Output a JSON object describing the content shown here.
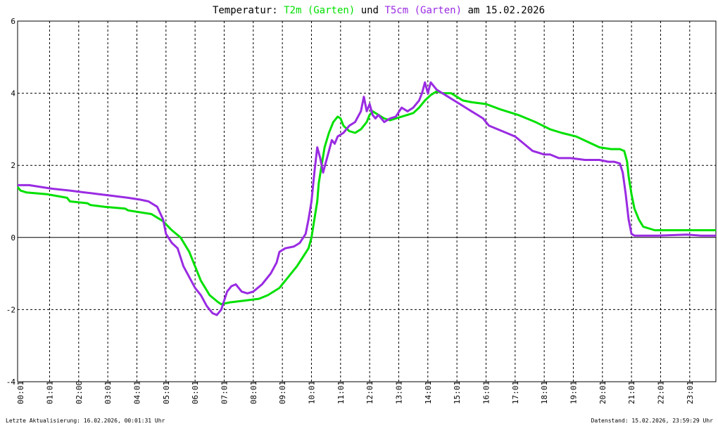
{
  "chart_data": {
    "type": "line",
    "title_parts": {
      "prefix": "Temperatur:",
      "series1": "T2m (Garten)",
      "connector": "und",
      "series2": "T5cm (Garten)",
      "suffix": "am 15.02.2026"
    },
    "ylim": [
      -4,
      6
    ],
    "yticks": [
      "-4",
      "-2",
      "0",
      "2",
      "4",
      "6"
    ],
    "xlim": [
      0,
      24
    ],
    "xtick_labels": [
      "00:01",
      "01:01",
      "02:00",
      "03:01",
      "04:01",
      "05:01",
      "06:01",
      "07:01",
      "08:01",
      "09:01",
      "10:01",
      "11:01",
      "12:01",
      "13:01",
      "14:01",
      "15:01",
      "16:01",
      "17:01",
      "18:01",
      "19:01",
      "20:01",
      "21:01",
      "22:01",
      "23:01"
    ],
    "grid": true,
    "colors": {
      "t2m": "#00e000",
      "t5cm": "#9a2be2",
      "frame": "#000000"
    },
    "series": [
      {
        "name": "T2m (Garten)",
        "color": "#00e000",
        "x": [
          0,
          0.1,
          0.3,
          1,
          1.7,
          1.8,
          2.4,
          2.5,
          3,
          3.7,
          3.8,
          4.6,
          5.0,
          5.3,
          5.6,
          5.9,
          6.1,
          6.3,
          6.6,
          6.9,
          7.0,
          7.3,
          7.8,
          8.3,
          8.6,
          9.0,
          9.3,
          9.6,
          9.8,
          10.0,
          10.1,
          10.2,
          10.3,
          10.35,
          10.45,
          10.55,
          10.7,
          10.85,
          11.0,
          11.1,
          11.2,
          11.4,
          11.6,
          11.8,
          12.0,
          12.1,
          12.2,
          12.4,
          12.6,
          12.8,
          13.0,
          13.2,
          13.4,
          13.6,
          13.8,
          14.0,
          14.2,
          14.4,
          14.6,
          14.9,
          15.1,
          15.3,
          15.6,
          16.1,
          16.6,
          17.2,
          17.8,
          18.3,
          18.7,
          19.2,
          19.6,
          20.0,
          20.4,
          20.7,
          20.85,
          20.95,
          21.0,
          21.1,
          21.2,
          21.35,
          21.5,
          21.7,
          21.9,
          22.2,
          23.0,
          24.0
        ],
        "values": [
          1.4,
          1.3,
          1.25,
          1.2,
          1.1,
          1.0,
          0.95,
          0.9,
          0.85,
          0.8,
          0.75,
          0.65,
          0.45,
          0.2,
          0.0,
          -0.4,
          -0.8,
          -1.2,
          -1.6,
          -1.8,
          -1.85,
          -1.8,
          -1.75,
          -1.7,
          -1.6,
          -1.4,
          -1.1,
          -0.8,
          -0.55,
          -0.3,
          0.0,
          0.5,
          1.0,
          1.5,
          2.0,
          2.5,
          2.9,
          3.2,
          3.35,
          3.3,
          3.1,
          2.95,
          2.9,
          3.0,
          3.2,
          3.4,
          3.5,
          3.4,
          3.3,
          3.25,
          3.3,
          3.35,
          3.4,
          3.45,
          3.6,
          3.8,
          3.95,
          4.05,
          4.0,
          4.0,
          3.9,
          3.8,
          3.75,
          3.7,
          3.55,
          3.4,
          3.2,
          3.0,
          2.9,
          2.8,
          2.65,
          2.5,
          2.45,
          2.45,
          2.4,
          2.1,
          1.7,
          1.2,
          0.8,
          0.5,
          0.3,
          0.25,
          0.2,
          0.2,
          0.2,
          0.2
        ]
      },
      {
        "name": "T5cm (Garten)",
        "color": "#9a2be2",
        "x": [
          0,
          0.4,
          0.8,
          1.2,
          1.8,
          2.3,
          2.8,
          3.3,
          3.8,
          4.2,
          4.5,
          4.8,
          5.0,
          5.1,
          5.3,
          5.5,
          5.7,
          5.9,
          6.1,
          6.3,
          6.5,
          6.7,
          6.85,
          7.0,
          7.2,
          7.35,
          7.5,
          7.7,
          7.9,
          8.1,
          8.4,
          8.7,
          8.9,
          9.0,
          9.2,
          9.5,
          9.7,
          9.9,
          10.0,
          10.1,
          10.2,
          10.3,
          10.4,
          10.5,
          10.6,
          10.7,
          10.8,
          10.9,
          11.0,
          11.2,
          11.4,
          11.6,
          11.8,
          11.9,
          12.0,
          12.1,
          12.2,
          12.3,
          12.4,
          12.6,
          12.8,
          13.0,
          13.2,
          13.4,
          13.6,
          13.8,
          13.9,
          14.0,
          14.1,
          14.2,
          14.4,
          14.6,
          14.8,
          15.0,
          15.2,
          15.4,
          15.6,
          15.8,
          16.0,
          16.2,
          16.5,
          16.8,
          17.1,
          17.4,
          17.7,
          17.9,
          18.1,
          18.3,
          18.6,
          19.0,
          19.5,
          20.0,
          20.3,
          20.5,
          20.7,
          20.8,
          20.9,
          21.0,
          21.1,
          21.2,
          21.4,
          21.7,
          22.0,
          23.0,
          23.5,
          24.0
        ],
        "values": [
          1.45,
          1.45,
          1.4,
          1.35,
          1.3,
          1.25,
          1.2,
          1.15,
          1.1,
          1.05,
          1.0,
          0.85,
          0.5,
          0.1,
          -0.15,
          -0.3,
          -0.8,
          -1.1,
          -1.4,
          -1.6,
          -1.9,
          -2.1,
          -2.15,
          -2.0,
          -1.5,
          -1.35,
          -1.3,
          -1.5,
          -1.55,
          -1.5,
          -1.3,
          -1.0,
          -0.7,
          -0.4,
          -0.3,
          -0.25,
          -0.15,
          0.1,
          0.5,
          1.0,
          1.8,
          2.5,
          2.2,
          1.8,
          2.1,
          2.4,
          2.7,
          2.6,
          2.8,
          2.9,
          3.1,
          3.2,
          3.5,
          3.9,
          3.5,
          3.7,
          3.4,
          3.3,
          3.4,
          3.2,
          3.3,
          3.35,
          3.6,
          3.5,
          3.6,
          3.8,
          4.0,
          4.3,
          4.0,
          4.3,
          4.1,
          4.0,
          3.9,
          3.8,
          3.7,
          3.6,
          3.5,
          3.4,
          3.3,
          3.1,
          3.0,
          2.9,
          2.8,
          2.6,
          2.4,
          2.35,
          2.3,
          2.3,
          2.2,
          2.2,
          2.15,
          2.15,
          2.1,
          2.1,
          2.05,
          1.8,
          1.2,
          0.5,
          0.1,
          0.05,
          0.05,
          0.05,
          0.05,
          0.08,
          0.05,
          0.05
        ]
      }
    ]
  },
  "footer": {
    "left": "Letzte Aktualisierung: 16.02.2026, 00:01:31 Uhr",
    "right": "Datenstand: 15.02.2026, 23:59:29 Uhr"
  }
}
